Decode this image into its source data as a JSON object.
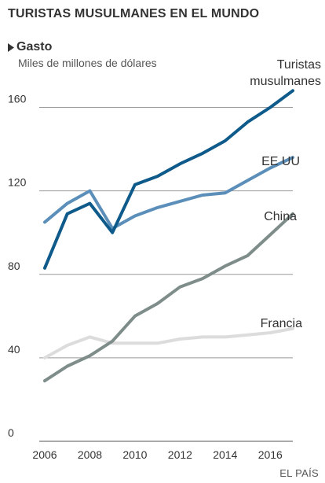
{
  "header": {
    "title": "TURISTAS MUSULMANES EN EL MUNDO",
    "section": "Gasto",
    "unit": "Miles de millones de dólares"
  },
  "footer": {
    "source": "EL PAÍS"
  },
  "chart_data": {
    "type": "line",
    "title": "TURISTAS MUSULMANES EN EL MUNDO",
    "subtitle": "Gasto",
    "ylabel": "Miles de millones de dólares",
    "xlabel": "",
    "x": [
      2006,
      2007,
      2008,
      2009,
      2010,
      2011,
      2012,
      2013,
      2014,
      2015,
      2016,
      2017
    ],
    "xticks": [
      "2006",
      "2008",
      "2010",
      "2012",
      "2014",
      "2016"
    ],
    "yticks": [
      "0",
      "40",
      "80",
      "120",
      "160"
    ],
    "ylim": [
      0,
      170
    ],
    "xlim": [
      2006,
      2017
    ],
    "grid": true,
    "legend": "none",
    "series": [
      {
        "name": "Turistas musulmanes",
        "label_lines": [
          "Turistas",
          "musulmanes"
        ],
        "color": "#0e5a8a",
        "values": [
          83,
          109,
          114,
          100,
          123,
          127,
          133,
          138,
          144,
          153,
          160,
          168
        ]
      },
      {
        "name": "EE UU",
        "label_lines": [
          "EE UU"
        ],
        "color": "#5b8fba",
        "values": [
          105,
          114,
          120,
          102,
          108,
          112,
          115,
          118,
          119,
          125,
          131,
          136
        ]
      },
      {
        "name": "China",
        "label_lines": [
          "China"
        ],
        "color": "#7e8d8a",
        "values": [
          29,
          36,
          41,
          48,
          60,
          66,
          74,
          78,
          84,
          89,
          99,
          109
        ]
      },
      {
        "name": "Francia",
        "label_lines": [
          "Francia"
        ],
        "color": "#dcdcdc",
        "values": [
          40,
          46,
          50,
          47,
          47,
          47,
          49,
          50,
          50,
          51,
          52,
          54
        ]
      }
    ]
  }
}
